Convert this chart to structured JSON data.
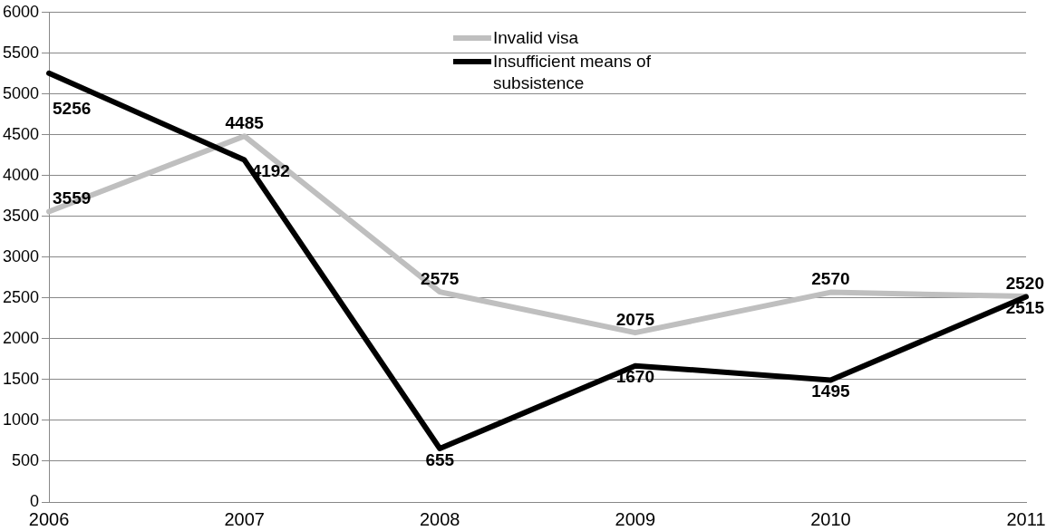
{
  "chart_data": {
    "type": "line",
    "categories": [
      "2006",
      "2007",
      "2008",
      "2009",
      "2010",
      "2011"
    ],
    "series": [
      {
        "name": "Invalid visa",
        "color": "#bfbfbf",
        "values": [
          3559,
          4485,
          2575,
          2075,
          2570,
          2520
        ]
      },
      {
        "name": "Insufficient means of subsistence",
        "color": "#000000",
        "values": [
          5256,
          4192,
          655,
          1670,
          1495,
          2515
        ]
      }
    ],
    "ylim": [
      0,
      6000
    ],
    "yticks": [
      0,
      500,
      1000,
      1500,
      2000,
      2500,
      3000,
      3500,
      4000,
      4500,
      5000,
      5500,
      6000
    ],
    "grid": "y",
    "legend": "top",
    "marker": "none",
    "line_style": "solid",
    "data_labels": true
  }
}
